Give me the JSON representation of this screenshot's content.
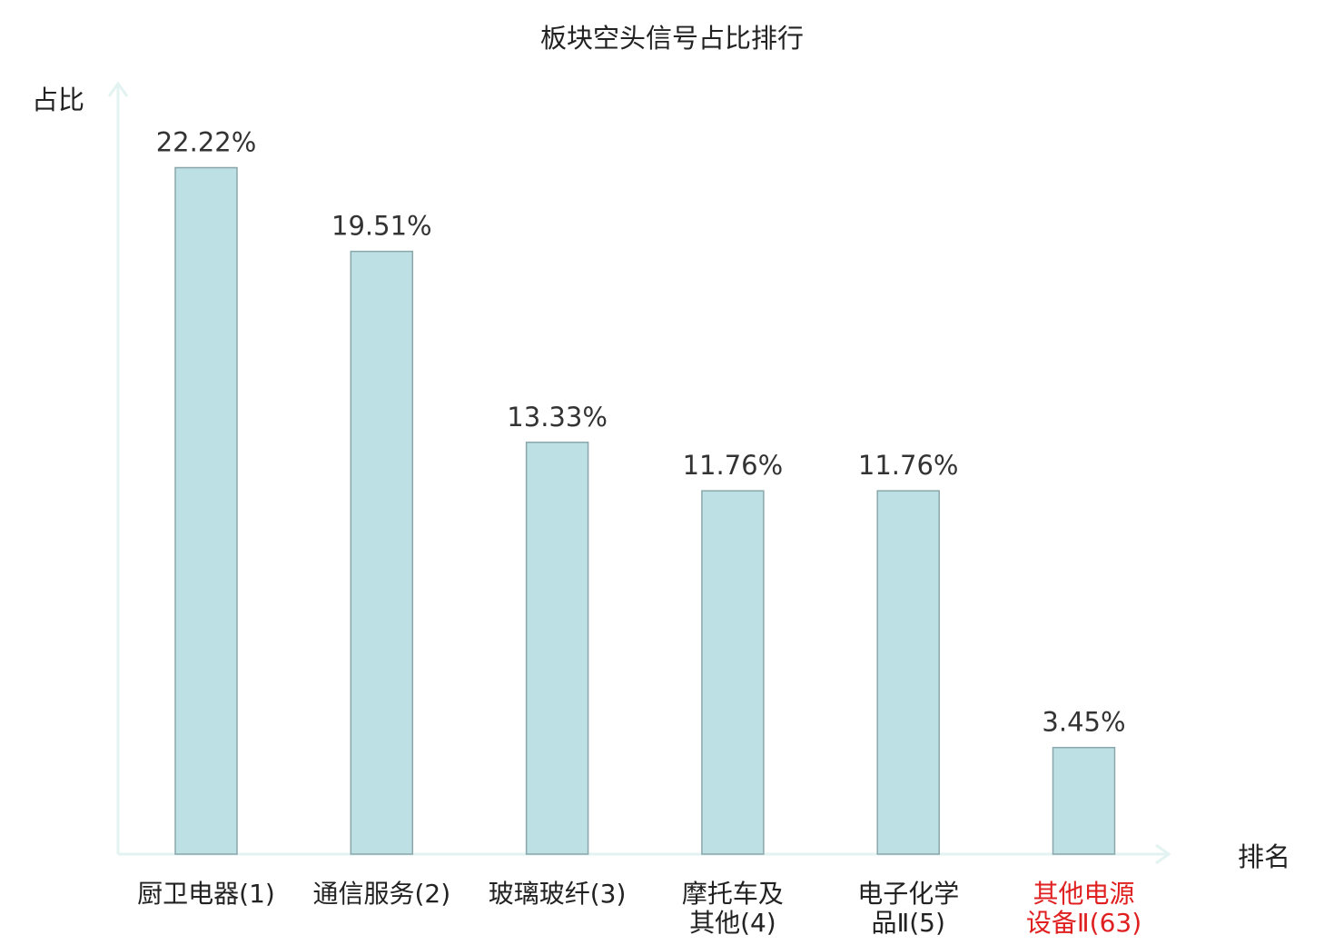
{
  "chart_data": {
    "type": "bar",
    "title": "板块空头信号占比排行",
    "ylabel": "占比",
    "xlabel": "排名",
    "ylim": [
      0,
      25
    ],
    "grid": false,
    "categories": [
      [
        "厨卫电器(1)"
      ],
      [
        "通信服务(2)"
      ],
      [
        "玻璃玻纤(3)"
      ],
      [
        "摩托车及",
        "其他(4)"
      ],
      [
        "电子化学",
        "品Ⅱ(5)"
      ],
      [
        "其他电源",
        "设备Ⅱ(63)"
      ]
    ],
    "values": [
      22.22,
      19.51,
      13.33,
      11.76,
      11.76,
      3.45
    ],
    "value_labels": [
      "22.22%",
      "19.51%",
      "13.33%",
      "11.76%",
      "11.76%",
      "3.45%"
    ],
    "highlight_index": 5,
    "colors": {
      "bar_fill": "#bce0e3",
      "bar_stroke": "#8aa7ab",
      "axis": "#e2f3f1",
      "text": "#222222",
      "value_text": "#333333",
      "highlight_text": "#e02020"
    }
  }
}
